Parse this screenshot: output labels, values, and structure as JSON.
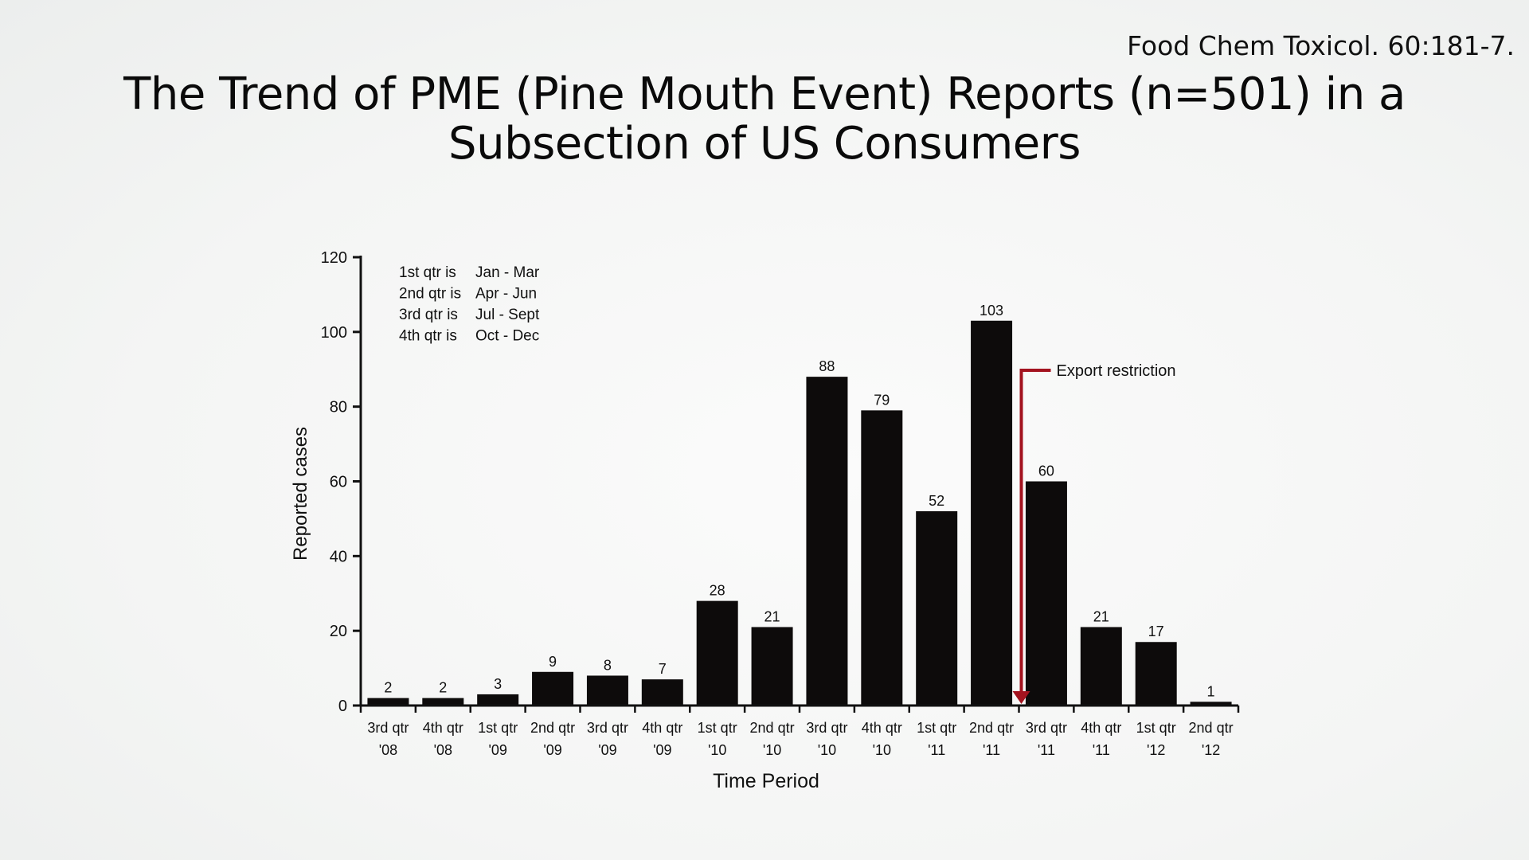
{
  "citation": "Food Chem Toxicol. 60:181-7.",
  "title": "The Trend of PME (Pine Mouth Event) Reports (n=501) in a Subsection of US Consumers",
  "chart_data": {
    "type": "bar",
    "categories": [
      [
        "3rd qtr",
        "'08"
      ],
      [
        "4th qtr",
        "'08"
      ],
      [
        "1st qtr",
        "'09"
      ],
      [
        "2nd qtr",
        "'09"
      ],
      [
        "3rd qtr",
        "'09"
      ],
      [
        "4th qtr",
        "'09"
      ],
      [
        "1st qtr",
        "'10"
      ],
      [
        "2nd qtr",
        "'10"
      ],
      [
        "3rd qtr",
        "'10"
      ],
      [
        "4th qtr",
        "'10"
      ],
      [
        "1st qtr",
        "'11"
      ],
      [
        "2nd qtr",
        "'11"
      ],
      [
        "3rd qtr",
        "'11"
      ],
      [
        "4th qtr",
        "'11"
      ],
      [
        "1st qtr",
        "'12"
      ],
      [
        "2nd qtr",
        "'12"
      ]
    ],
    "values": [
      2,
      2,
      3,
      9,
      8,
      7,
      28,
      21,
      88,
      79,
      52,
      103,
      60,
      21,
      17,
      1
    ],
    "ylabel": "Reported cases",
    "xlabel": "Time Period",
    "ylim": [
      0,
      120
    ],
    "yticks": [
      0,
      20,
      40,
      60,
      80,
      100,
      120
    ],
    "bar_color": "#0d0b0b",
    "legend_note": [
      [
        "1st qtr  is",
        "Jan - Mar"
      ],
      [
        "2nd qtr is",
        "Apr - Jun"
      ],
      [
        "3rd qtr  is",
        "Jul - Sept"
      ],
      [
        "4th qtr  is",
        "Oct - Dec"
      ]
    ],
    "annotation": {
      "text": "Export restriction",
      "between_categories": [
        11,
        12
      ],
      "color": "#a3131f"
    }
  }
}
